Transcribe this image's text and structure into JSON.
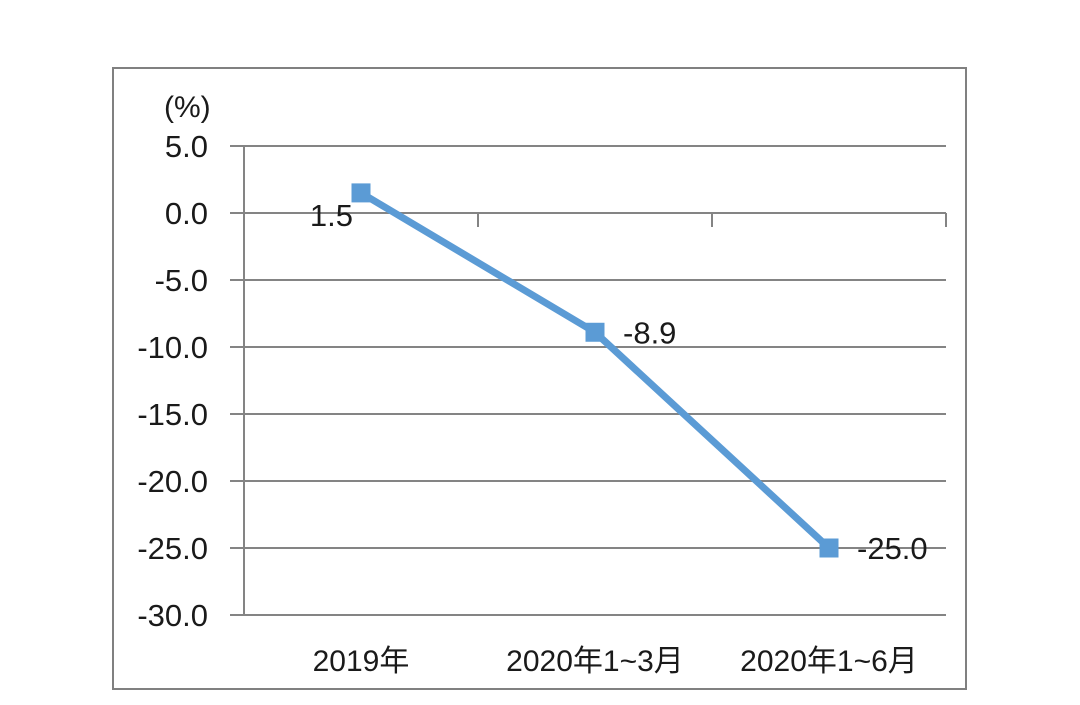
{
  "figure": {
    "background_color": "#ffffff",
    "frame_border_color": "#808080"
  },
  "chart_data": {
    "type": "line",
    "title": "",
    "unit_label": "(%)",
    "categories": [
      "2019年",
      "2020年1~3月",
      "2020年1~6月"
    ],
    "values": [
      1.5,
      -8.9,
      -25.0
    ],
    "point_labels": [
      "1.5",
      "-8.9",
      "-25.0"
    ],
    "point_label_positions": [
      "below-left",
      "right",
      "right"
    ],
    "xlabel": "",
    "ylabel": "(%)",
    "ylim": [
      -30,
      5
    ],
    "ytick_values": [
      5,
      0,
      -5,
      -10,
      -15,
      -20,
      -25,
      -30
    ],
    "ytick_labels": [
      "5.0",
      "0.0",
      "-5.0",
      "-10.0",
      "-15.0",
      "-20.0",
      "-25.0",
      "-30.0"
    ],
    "grid": true,
    "legend_position": "none",
    "line_color": "#5b9bd5",
    "marker_shape": "square",
    "axis_color": "#848484",
    "text_color": "#1a1a1a"
  }
}
